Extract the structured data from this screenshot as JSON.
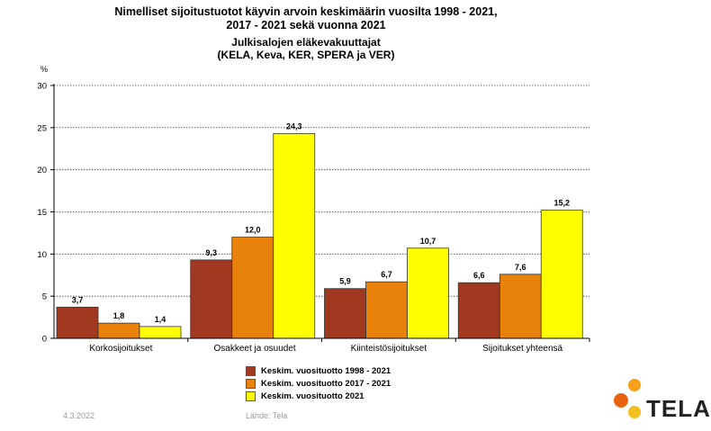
{
  "chart_data": {
    "type": "bar",
    "title_line1": "Nimelliset sijoitustuotot käyvin arvoin keskimäärin vuosilta 1998 - 2021,",
    "title_line2": "2017 - 2021 sekä vuonna 2021",
    "subtitle_line1": "Julkisalojen eläkevakuuttajat",
    "subtitle_line2": "(KELA, Keva, KER, SPERA ja VER)",
    "ylabel": "%",
    "ylim": [
      0,
      30
    ],
    "yticks": [
      "0",
      "5",
      "10",
      "15",
      "20",
      "25",
      "30"
    ],
    "grid": true,
    "legend_position": "bottom",
    "categories": [
      "Korkosijoitukset",
      "Osakkeet ja osuudet",
      "Kiinteistösijoitukset",
      "Sijoitukset yhteensä"
    ],
    "series": [
      {
        "name": "Keskim. vuosituotto 1998 - 2021",
        "color": "#a0391f",
        "values": [
          3.7,
          9.3,
          5.9,
          6.6
        ],
        "labels": [
          "3,7",
          "9,3",
          "5,9",
          "6,6"
        ]
      },
      {
        "name": "Keskim. vuosituotto 2017 - 2021",
        "color": "#e8820a",
        "values": [
          1.8,
          12.0,
          6.7,
          7.6
        ],
        "labels": [
          "1,8",
          "12,0",
          "6,7",
          "7,6"
        ]
      },
      {
        "name": "Keskim. vuosituotto 2021",
        "color": "#ffff00",
        "values": [
          1.4,
          24.3,
          10.7,
          15.2
        ],
        "labels": [
          "1,4",
          "24,3",
          "10,7",
          "15,2"
        ]
      }
    ]
  },
  "footer": {
    "date": "4.3.2022",
    "source": "Lähde: Tela"
  },
  "logo": {
    "text": "TELA",
    "colors": [
      "#f7a11a",
      "#e8620f",
      "#f4c020"
    ]
  }
}
